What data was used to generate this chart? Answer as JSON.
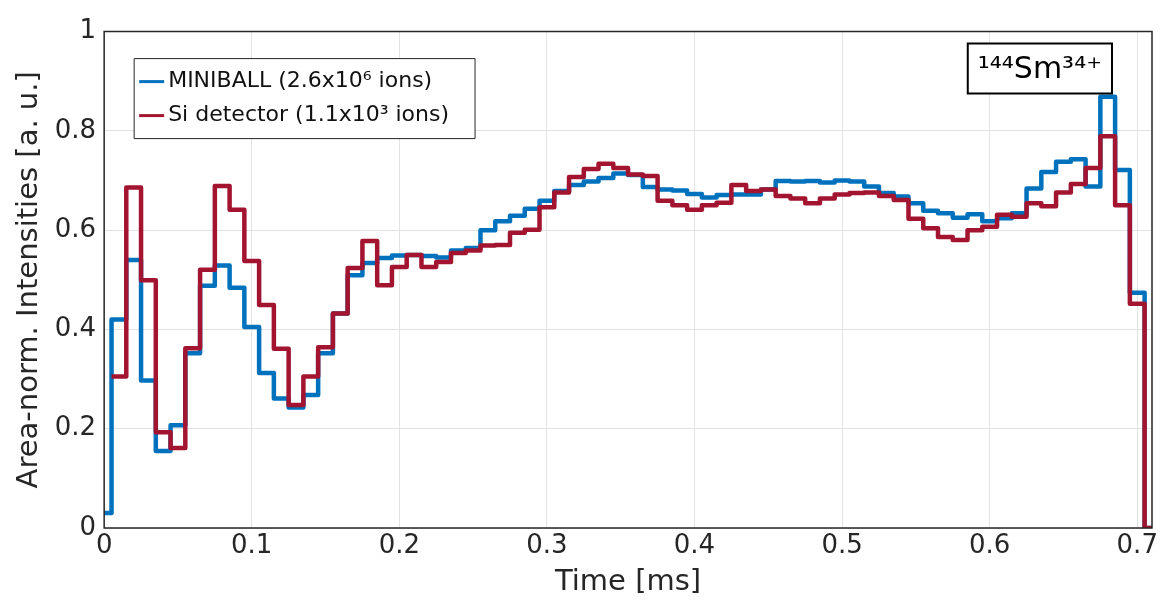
{
  "chart_data": {
    "type": "step",
    "xlabel": "Time [ms]",
    "ylabel": "Area-norm. Intensities [a. u.]",
    "annotations": [
      "¹⁴⁴Sm³⁴⁺"
    ],
    "x": [
      0,
      0.005,
      0.015,
      0.025,
      0.035,
      0.045,
      0.055,
      0.065,
      0.075,
      0.085,
      0.095,
      0.105,
      0.115,
      0.125,
      0.135,
      0.145,
      0.155,
      0.165,
      0.175,
      0.185,
      0.195,
      0.205,
      0.215,
      0.225,
      0.235,
      0.245,
      0.255,
      0.265,
      0.275,
      0.285,
      0.295,
      0.305,
      0.315,
      0.325,
      0.335,
      0.345,
      0.355,
      0.365,
      0.375,
      0.385,
      0.395,
      0.405,
      0.415,
      0.425,
      0.435,
      0.445,
      0.455,
      0.465,
      0.475,
      0.485,
      0.495,
      0.505,
      0.515,
      0.525,
      0.535,
      0.545,
      0.555,
      0.565,
      0.575,
      0.585,
      0.595,
      0.605,
      0.615,
      0.625,
      0.635,
      0.645,
      0.655,
      0.665,
      0.675,
      0.685,
      0.695,
      0.705,
      0.71
    ],
    "series": [
      {
        "name": "MINIBALL (2.6x10⁶ ions)",
        "color": "#0072bd",
        "values": [
          0.03,
          0.42,
          0.54,
          0.297,
          0.155,
          0.207,
          0.352,
          0.488,
          0.529,
          0.484,
          0.405,
          0.312,
          0.261,
          0.243,
          0.268,
          0.352,
          0.432,
          0.509,
          0.534,
          0.544,
          0.549,
          0.55,
          0.548,
          0.545,
          0.559,
          0.564,
          0.6,
          0.618,
          0.629,
          0.643,
          0.659,
          0.679,
          0.691,
          0.698,
          0.705,
          0.714,
          0.711,
          0.687,
          0.682,
          0.68,
          0.673,
          0.666,
          0.671,
          0.672,
          0.672,
          0.682,
          0.699,
          0.698,
          0.699,
          0.696,
          0.7,
          0.698,
          0.688,
          0.675,
          0.668,
          0.654,
          0.639,
          0.634,
          0.625,
          0.632,
          0.618,
          0.624,
          0.634,
          0.684,
          0.717,
          0.738,
          0.743,
          0.688,
          0.869,
          0.721,
          0.474,
          0,
          0
        ]
      },
      {
        "name": "Si detector (1.1x10³ ions)",
        "color": "#a2142f",
        "values": [
          null,
          0.305,
          0.686,
          0.499,
          0.193,
          0.161,
          0.362,
          0.52,
          0.689,
          0.641,
          0.538,
          0.449,
          0.361,
          0.248,
          0.305,
          0.364,
          0.432,
          0.524,
          0.578,
          0.489,
          0.526,
          0.55,
          0.526,
          0.536,
          0.554,
          0.559,
          0.569,
          0.57,
          0.595,
          0.601,
          0.646,
          0.676,
          0.707,
          0.723,
          0.734,
          0.725,
          0.712,
          0.709,
          0.659,
          0.65,
          0.641,
          0.65,
          0.655,
          0.691,
          0.679,
          0.682,
          0.669,
          0.664,
          0.654,
          0.664,
          0.672,
          0.675,
          0.676,
          0.669,
          0.661,
          0.623,
          0.604,
          0.586,
          0.58,
          0.6,
          0.607,
          0.631,
          0.627,
          0.654,
          0.648,
          0.676,
          0.693,
          0.725,
          0.789,
          0.65,
          0.452,
          0,
          0
        ]
      }
    ],
    "xlim": [
      0,
      0.71
    ],
    "xticks": [
      0,
      0.1,
      0.2,
      0.3,
      0.4,
      0.5,
      0.6,
      0.7
    ],
    "ylim": [
      0,
      1
    ],
    "yticks": [
      0,
      0.2,
      0.4,
      0.6,
      0.8,
      1
    ],
    "grid": true,
    "legend": "top left"
  }
}
